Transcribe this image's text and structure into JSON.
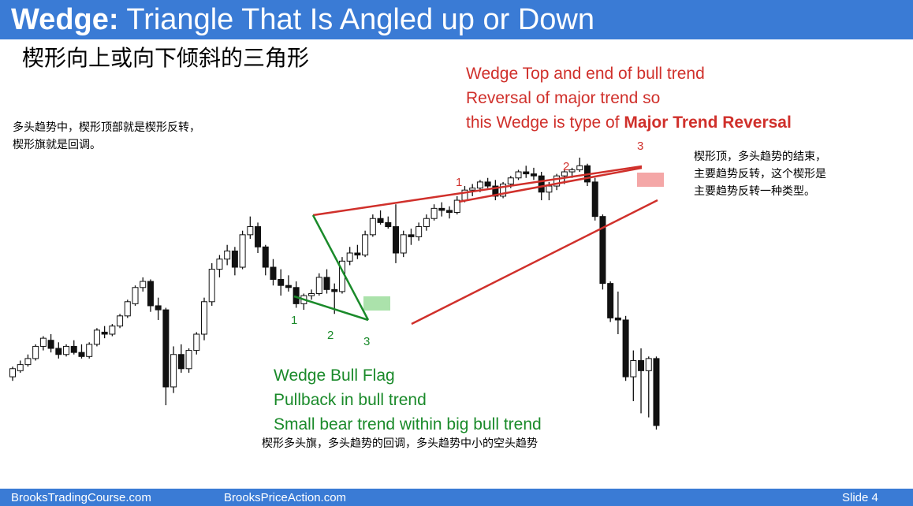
{
  "slide": {
    "title_bold": "Wedge:",
    "title_rest": " Triangle That Is Angled up or Down",
    "subtitle_cn": "楔形向上或向下倾斜的三角形",
    "note_left": [
      "多头趋势中，楔形顶部就是楔形反转，",
      "楔形旗就是回调。"
    ],
    "note_right": [
      "楔形顶，多头趋势的结束，",
      "主要趋势反转，这个楔形是",
      "主要趋势反转一种类型。"
    ],
    "note_bottom": "楔形多头旗，多头趋势的回调，多头趋势中小的空头趋势",
    "footer": {
      "site1": "BrooksTradingCourse.com",
      "site2": "BrooksPriceAction.com",
      "slide_label": "Slide  4"
    }
  },
  "chart_data": {
    "type": "candlestick",
    "colors": {
      "bull_body": "#ffffff",
      "bear_body": "#111111",
      "wick": "#111111",
      "wedge_top_lines": "#d0302b",
      "wedge_flag_lines": "#1a8a2a",
      "highlight_red": "#f08a8a",
      "highlight_green": "#8fd88f"
    },
    "annotations_red": {
      "line1": "Wedge Top and end of bull trend",
      "line2": "Reversal of major trend so",
      "line3_prefix": "this Wedge is type of ",
      "line3_bold": "Major Trend Reversal"
    },
    "annotations_green": {
      "line1": "Wedge Bull Flag",
      "line2": "Pullback in bull trend",
      "line3": "Small bear trend within big bull trend"
    },
    "wedge_top_push_labels": [
      "1",
      "2",
      "3"
    ],
    "wedge_flag_push_labels": [
      "1",
      "2",
      "3"
    ],
    "candles": [
      {
        "o": 142,
        "h": 147,
        "l": 140,
        "c": 146
      },
      {
        "o": 145,
        "h": 150,
        "l": 144,
        "c": 148
      },
      {
        "o": 148,
        "h": 153,
        "l": 147,
        "c": 151
      },
      {
        "o": 151,
        "h": 158,
        "l": 150,
        "c": 157
      },
      {
        "o": 157,
        "h": 162,
        "l": 155,
        "c": 161
      },
      {
        "o": 160,
        "h": 163,
        "l": 154,
        "c": 156
      },
      {
        "o": 156,
        "h": 159,
        "l": 151,
        "c": 153
      },
      {
        "o": 153,
        "h": 158,
        "l": 152,
        "c": 157
      },
      {
        "o": 157,
        "h": 160,
        "l": 153,
        "c": 154
      },
      {
        "o": 154,
        "h": 158,
        "l": 151,
        "c": 152
      },
      {
        "o": 152,
        "h": 159,
        "l": 151,
        "c": 158
      },
      {
        "o": 158,
        "h": 166,
        "l": 157,
        "c": 165
      },
      {
        "o": 164,
        "h": 167,
        "l": 161,
        "c": 163
      },
      {
        "o": 163,
        "h": 168,
        "l": 162,
        "c": 167
      },
      {
        "o": 167,
        "h": 173,
        "l": 166,
        "c": 172
      },
      {
        "o": 172,
        "h": 180,
        "l": 171,
        "c": 179
      },
      {
        "o": 178,
        "h": 187,
        "l": 177,
        "c": 186
      },
      {
        "o": 186,
        "h": 191,
        "l": 184,
        "c": 189
      },
      {
        "o": 189,
        "h": 190,
        "l": 174,
        "c": 177
      },
      {
        "o": 177,
        "h": 181,
        "l": 170,
        "c": 175
      },
      {
        "o": 175,
        "h": 176,
        "l": 128,
        "c": 137
      },
      {
        "o": 137,
        "h": 157,
        "l": 134,
        "c": 153
      },
      {
        "o": 153,
        "h": 158,
        "l": 144,
        "c": 146
      },
      {
        "o": 146,
        "h": 156,
        "l": 144,
        "c": 155
      },
      {
        "o": 155,
        "h": 164,
        "l": 153,
        "c": 163
      },
      {
        "o": 163,
        "h": 181,
        "l": 160,
        "c": 179
      },
      {
        "o": 179,
        "h": 198,
        "l": 177,
        "c": 195
      },
      {
        "o": 195,
        "h": 202,
        "l": 191,
        "c": 200
      },
      {
        "o": 200,
        "h": 207,
        "l": 197,
        "c": 204
      },
      {
        "o": 204,
        "h": 206,
        "l": 192,
        "c": 196
      },
      {
        "o": 196,
        "h": 214,
        "l": 195,
        "c": 212
      },
      {
        "o": 212,
        "h": 221,
        "l": 210,
        "c": 216
      },
      {
        "o": 216,
        "h": 218,
        "l": 203,
        "c": 206
      },
      {
        "o": 206,
        "h": 207,
        "l": 192,
        "c": 196
      },
      {
        "o": 196,
        "h": 200,
        "l": 187,
        "c": 190
      },
      {
        "o": 190,
        "h": 195,
        "l": 182,
        "c": 187
      },
      {
        "o": 187,
        "h": 192,
        "l": 184,
        "c": 186
      },
      {
        "o": 186,
        "h": 189,
        "l": 176,
        "c": 178
      },
      {
        "o": 178,
        "h": 183,
        "l": 175,
        "c": 182
      },
      {
        "o": 182,
        "h": 185,
        "l": 180,
        "c": 183
      },
      {
        "o": 183,
        "h": 193,
        "l": 182,
        "c": 191
      },
      {
        "o": 191,
        "h": 195,
        "l": 183,
        "c": 185
      },
      {
        "o": 185,
        "h": 188,
        "l": 173,
        "c": 184
      },
      {
        "o": 184,
        "h": 201,
        "l": 183,
        "c": 199
      },
      {
        "o": 199,
        "h": 206,
        "l": 197,
        "c": 203
      },
      {
        "o": 203,
        "h": 207,
        "l": 200,
        "c": 202
      },
      {
        "o": 202,
        "h": 214,
        "l": 201,
        "c": 212
      },
      {
        "o": 212,
        "h": 222,
        "l": 211,
        "c": 220
      },
      {
        "o": 220,
        "h": 224,
        "l": 217,
        "c": 218
      },
      {
        "o": 218,
        "h": 221,
        "l": 215,
        "c": 216
      },
      {
        "o": 216,
        "h": 227,
        "l": 198,
        "c": 203
      },
      {
        "o": 203,
        "h": 214,
        "l": 201,
        "c": 212
      },
      {
        "o": 212,
        "h": 215,
        "l": 207,
        "c": 211
      },
      {
        "o": 211,
        "h": 218,
        "l": 209,
        "c": 216
      },
      {
        "o": 216,
        "h": 222,
        "l": 214,
        "c": 220
      },
      {
        "o": 220,
        "h": 227,
        "l": 219,
        "c": 225
      },
      {
        "o": 225,
        "h": 228,
        "l": 221,
        "c": 224
      },
      {
        "o": 224,
        "h": 226,
        "l": 220,
        "c": 223
      },
      {
        "o": 223,
        "h": 231,
        "l": 222,
        "c": 229
      },
      {
        "o": 229,
        "h": 236,
        "l": 228,
        "c": 234
      },
      {
        "o": 234,
        "h": 237,
        "l": 231,
        "c": 235
      },
      {
        "o": 235,
        "h": 239,
        "l": 233,
        "c": 238
      },
      {
        "o": 238,
        "h": 240,
        "l": 235,
        "c": 236
      },
      {
        "o": 236,
        "h": 239,
        "l": 229,
        "c": 231
      },
      {
        "o": 231,
        "h": 238,
        "l": 230,
        "c": 237
      },
      {
        "o": 237,
        "h": 241,
        "l": 235,
        "c": 240
      },
      {
        "o": 240,
        "h": 244,
        "l": 239,
        "c": 243
      },
      {
        "o": 243,
        "h": 246,
        "l": 240,
        "c": 242
      },
      {
        "o": 242,
        "h": 245,
        "l": 239,
        "c": 241
      },
      {
        "o": 241,
        "h": 243,
        "l": 229,
        "c": 233
      },
      {
        "o": 233,
        "h": 238,
        "l": 229,
        "c": 236
      },
      {
        "o": 236,
        "h": 242,
        "l": 234,
        "c": 241
      },
      {
        "o": 241,
        "h": 244,
        "l": 237,
        "c": 243
      },
      {
        "o": 243,
        "h": 245,
        "l": 240,
        "c": 244
      },
      {
        "o": 244,
        "h": 250,
        "l": 243,
        "c": 246
      },
      {
        "o": 246,
        "h": 247,
        "l": 236,
        "c": 238
      },
      {
        "o": 238,
        "h": 240,
        "l": 219,
        "c": 221
      },
      {
        "o": 221,
        "h": 222,
        "l": 185,
        "c": 188
      },
      {
        "o": 188,
        "h": 189,
        "l": 169,
        "c": 171
      },
      {
        "o": 171,
        "h": 184,
        "l": 163,
        "c": 170
      },
      {
        "o": 170,
        "h": 172,
        "l": 140,
        "c": 142
      },
      {
        "o": 142,
        "h": 155,
        "l": 130,
        "c": 150
      },
      {
        "o": 150,
        "h": 156,
        "l": 124,
        "c": 145
      },
      {
        "o": 145,
        "h": 152,
        "l": 122,
        "c": 151
      },
      {
        "o": 151,
        "h": 152,
        "l": 116,
        "c": 118
      }
    ]
  }
}
